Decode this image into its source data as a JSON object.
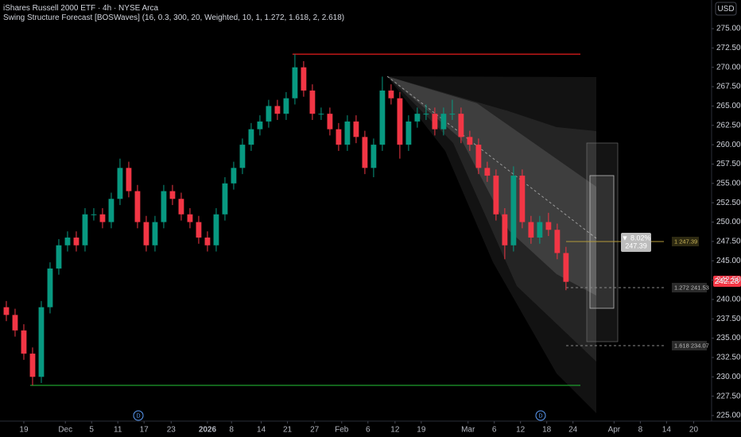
{
  "chart_data": {
    "type": "candlestick",
    "title": "iShares Russell 2000 ETF · 4h · NYSE Arca",
    "subtitle": "Swing Structure Forecast [BOSWaves] (16, 0.3, 300, 20, Weighted, 10, 1, 1.272, 1.618, 2, 2.618)",
    "currency": "USD",
    "up_color": "#089981",
    "down_color": "#f23645",
    "x": [
      -4,
      -2,
      0,
      2,
      4,
      6,
      8,
      10,
      12,
      14,
      16,
      18,
      20,
      22,
      24,
      26,
      28,
      30,
      32,
      34,
      36,
      38,
      40,
      42,
      44,
      46,
      48,
      50,
      52,
      54,
      56,
      58,
      60,
      62,
      64,
      66,
      68,
      70,
      72,
      74,
      76,
      78,
      80,
      82,
      84,
      86,
      88,
      90,
      92,
      94,
      96,
      98,
      100,
      102,
      104,
      106,
      108,
      110,
      112,
      114,
      116,
      118,
      120,
      122,
      124
    ],
    "open": [
      239,
      238,
      236,
      233,
      230,
      239,
      244,
      247,
      248,
      247,
      251,
      251,
      250,
      253,
      257,
      254,
      250,
      247,
      250,
      254,
      253,
      251,
      250,
      248,
      247,
      251,
      255,
      257,
      260,
      262,
      263,
      265,
      264,
      266,
      270,
      267,
      264,
      264,
      262,
      260,
      263,
      261,
      257,
      260,
      267,
      266,
      260,
      263,
      264,
      264,
      262,
      264,
      264,
      261,
      260,
      257,
      256,
      251,
      247,
      256,
      250,
      248,
      250,
      249,
      246
    ],
    "high": [
      239.8,
      238.8,
      236.8,
      233.8,
      239.8,
      244.8,
      247.8,
      248.8,
      248.8,
      251.8,
      251.8,
      251.8,
      253.8,
      258.2,
      257.8,
      254.8,
      250.8,
      250.8,
      254.8,
      254.8,
      253.8,
      251.8,
      250.8,
      248.8,
      251.8,
      255.8,
      257.8,
      260.8,
      262.8,
      263.8,
      265.8,
      265.8,
      266.8,
      271.7,
      270.8,
      267.8,
      264.8,
      264.8,
      262.8,
      263.8,
      263.8,
      261.8,
      260.8,
      268.8,
      267.8,
      266.8,
      263.8,
      264.8,
      265.2,
      264.8,
      264.8,
      265.8,
      264.8,
      261.8,
      260.8,
      257.8,
      256.8,
      251.8,
      257.2,
      256.8,
      250.8,
      250.8,
      251.2,
      249.8,
      246.8
    ],
    "low": [
      237.2,
      235.2,
      232.2,
      228.9,
      229.2,
      238.2,
      243.2,
      246.2,
      246.2,
      246.2,
      250.2,
      249.2,
      249.2,
      252.2,
      253.2,
      249.2,
      246.2,
      246.2,
      249.2,
      252.2,
      250.2,
      249.2,
      247.2,
      246.2,
      246.2,
      250.2,
      254.2,
      256.2,
      259.2,
      261.2,
      262.2,
      263.2,
      263.2,
      265.2,
      266.2,
      263.2,
      263.2,
      261.2,
      259.2,
      259.2,
      260.2,
      256.2,
      255.8,
      259.2,
      265.2,
      258.2,
      259.2,
      262.2,
      263.2,
      261.2,
      261.2,
      263.2,
      260.2,
      259.2,
      256.2,
      255.2,
      250.2,
      245.2,
      246.2,
      249.2,
      247.2,
      247.2,
      248.2,
      245.2,
      241.2
    ],
    "close": [
      238,
      236,
      233,
      230,
      239,
      244,
      247,
      248,
      247,
      251,
      251,
      250,
      253,
      257,
      254,
      250,
      247,
      250,
      254,
      253,
      251,
      250,
      248,
      247,
      251,
      255,
      257,
      260,
      262,
      263,
      265,
      264,
      266,
      270,
      267,
      264,
      264,
      262,
      260,
      263,
      261,
      257,
      260,
      267,
      266,
      260,
      263,
      264,
      264,
      262,
      264,
      264,
      261,
      260,
      257,
      256,
      251,
      247,
      256,
      250,
      248,
      250,
      249,
      246,
      242.28
    ],
    "xlim": [
      -5.45,
      157.3
    ],
    "xticks": [
      {
        "value": 0,
        "label": "19"
      },
      {
        "value": 9.5,
        "label": "Dec"
      },
      {
        "value": 15.5,
        "label": "5"
      },
      {
        "value": 21.5,
        "label": "11"
      },
      {
        "value": 27.5,
        "label": "17"
      },
      {
        "value": 33.7,
        "label": "23"
      },
      {
        "value": 42,
        "label": "2026"
      },
      {
        "value": 47.5,
        "label": "8"
      },
      {
        "value": 54.3,
        "label": "14"
      },
      {
        "value": 60.3,
        "label": "21"
      },
      {
        "value": 66.5,
        "label": "27"
      },
      {
        "value": 72.7,
        "label": "Feb"
      },
      {
        "value": 78.7,
        "label": "6"
      },
      {
        "value": 84.9,
        "label": "12"
      },
      {
        "value": 90.9,
        "label": "19"
      },
      {
        "value": 101.6,
        "label": "Mar"
      },
      {
        "value": 107.6,
        "label": "6"
      },
      {
        "value": 113.6,
        "label": "12"
      },
      {
        "value": 119.6,
        "label": "18"
      },
      {
        "value": 125.6,
        "label": "24"
      },
      {
        "value": 135,
        "label": "Apr"
      },
      {
        "value": 141,
        "label": "8"
      },
      {
        "value": 147,
        "label": "14"
      },
      {
        "value": 153.2,
        "label": "20"
      }
    ],
    "ylim": [
      224.28,
      278.7
    ],
    "yticks": [
      {
        "value": 225,
        "label": "225.00"
      },
      {
        "value": 227.5,
        "label": "227.50"
      },
      {
        "value": 230,
        "label": "230.00"
      },
      {
        "value": 232.5,
        "label": "232.50"
      },
      {
        "value": 235,
        "label": "235.00"
      },
      {
        "value": 237.5,
        "label": "237.50"
      },
      {
        "value": 240,
        "label": "240.00"
      },
      {
        "value": 242.5,
        "label": "242.50"
      },
      {
        "value": 245,
        "label": "245.00"
      },
      {
        "value": 247.5,
        "label": "247.50"
      },
      {
        "value": 250,
        "label": "250.00"
      },
      {
        "value": 252.5,
        "label": "252.50"
      },
      {
        "value": 255,
        "label": "255.00"
      },
      {
        "value": 257.5,
        "label": "257.50"
      },
      {
        "value": 260,
        "label": "260.00"
      },
      {
        "value": 262.5,
        "label": "262.50"
      },
      {
        "value": 265,
        "label": "265.00"
      },
      {
        "value": 267.5,
        "label": "267.50"
      },
      {
        "value": 270,
        "label": "270.00"
      },
      {
        "value": 272.5,
        "label": "272.50"
      },
      {
        "value": 275,
        "label": "275.00"
      }
    ],
    "annotations": {
      "target_change": "▼ 8.02%",
      "target_price": "247.39",
      "level_1": "1  247.39",
      "level_1272": "1.272  241.53",
      "level_1618": "1.618  234.07",
      "last_price": "242.28",
      "dividend_marker_1": "D",
      "dividend_marker_2": "D"
    }
  }
}
